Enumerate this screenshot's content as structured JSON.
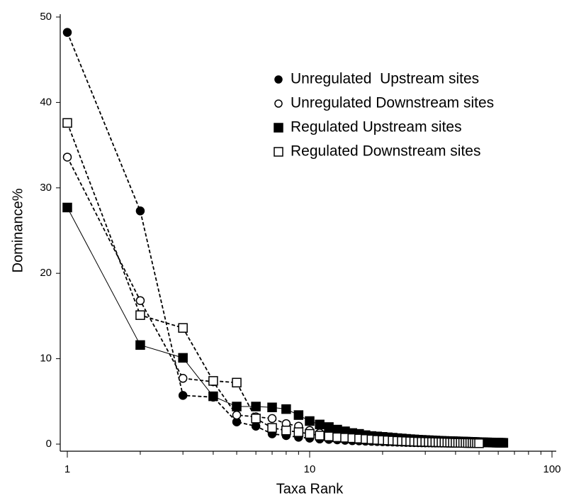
{
  "chart_data": {
    "type": "line",
    "x": [
      1,
      2,
      3,
      4,
      5,
      6,
      7,
      8,
      9,
      10,
      11,
      12,
      13,
      14,
      15,
      16,
      17,
      18,
      19,
      20,
      21,
      22,
      23,
      24,
      25,
      26,
      27,
      28,
      29,
      30,
      31,
      32,
      33,
      34,
      35,
      36,
      37,
      38,
      39,
      40,
      41,
      42,
      43,
      44,
      45,
      46,
      47,
      48,
      49,
      50,
      51,
      52,
      53,
      54,
      55,
      56,
      57,
      58,
      59,
      60,
      61,
      62,
      63
    ],
    "xlabel": "Taxa Rank",
    "ylabel": "Dominance%",
    "xlim": [
      1,
      100
    ],
    "xticks": [
      1,
      10,
      100
    ],
    "xscale": "log",
    "ylim": [
      0,
      50
    ],
    "yticks": [
      0,
      10,
      20,
      30,
      40,
      50
    ],
    "legend": "upper right",
    "series": [
      {
        "name": "Unregulated  Upstream sites",
        "color": "#000000",
        "marker": "circle",
        "filled": true,
        "dashed": true,
        "values": [
          48.2,
          27.3,
          5.7,
          5.5,
          2.6,
          2.1,
          1.2,
          1.0,
          0.8,
          0.7,
          0.6,
          0.55,
          0.5,
          0.45,
          0.4,
          0.38,
          0.35,
          0.33,
          0.3,
          0.28,
          0.26,
          0.25,
          0.23,
          0.22,
          0.2,
          0.19,
          0.18,
          0.17,
          0.16,
          0.15,
          0.15,
          0.14,
          0.13,
          0.13,
          0.12,
          0.12,
          0.11,
          0.11,
          0.1,
          0.1,
          null,
          null,
          null,
          null,
          null,
          null,
          null,
          null,
          null,
          null,
          null,
          null,
          null,
          null,
          null,
          null,
          null,
          null,
          null,
          null,
          null,
          null,
          null
        ]
      },
      {
        "name": "Unregulated Downstream sites",
        "color": "#000000",
        "marker": "circle",
        "filled": false,
        "dashed": true,
        "values": [
          33.6,
          16.8,
          7.7,
          7.3,
          3.4,
          3.2,
          3.0,
          2.4,
          2.1,
          1.6,
          1.3,
          1.1,
          0.95,
          0.85,
          0.75,
          0.7,
          0.65,
          0.6,
          0.55,
          0.5,
          0.47,
          0.44,
          0.41,
          0.38,
          0.36,
          0.34,
          0.32,
          0.3,
          0.28,
          0.27,
          0.25,
          0.24,
          0.23,
          0.22,
          0.21,
          0.2,
          0.19,
          0.18,
          0.17,
          0.16,
          0.15,
          0.14,
          0.13,
          0.12,
          0.11,
          null,
          null,
          null,
          null,
          null,
          null,
          null,
          null,
          null,
          null,
          null,
          null,
          null,
          null,
          null,
          null,
          null,
          null
        ]
      },
      {
        "name": "Regulated Upstream sites",
        "color": "#000000",
        "marker": "square",
        "filled": true,
        "dashed": false,
        "values": [
          27.7,
          11.6,
          10.1,
          5.6,
          4.4,
          4.4,
          4.3,
          4.1,
          3.4,
          2.7,
          2.3,
          2.0,
          1.7,
          1.5,
          1.3,
          1.2,
          1.05,
          0.95,
          0.9,
          0.85,
          0.8,
          0.75,
          0.7,
          0.66,
          0.62,
          0.58,
          0.55,
          0.52,
          0.5,
          0.48,
          0.46,
          0.44,
          0.42,
          0.4,
          0.38,
          0.37,
          0.36,
          0.35,
          0.34,
          0.33,
          0.32,
          0.31,
          0.3,
          0.29,
          0.28,
          0.27,
          0.26,
          0.25,
          0.24,
          0.23,
          0.22,
          0.21,
          0.2,
          0.2,
          0.19,
          0.19,
          0.18,
          0.18,
          0.17,
          0.17,
          0.16,
          0.16,
          0.15
        ]
      },
      {
        "name": "Regulated Downstream sites",
        "color": "#000000",
        "marker": "square",
        "filled": false,
        "dashed": true,
        "values": [
          37.6,
          15.1,
          13.6,
          7.4,
          7.2,
          3.0,
          1.9,
          1.6,
          1.4,
          1.2,
          1.0,
          0.9,
          0.8,
          0.75,
          0.7,
          0.65,
          0.6,
          0.55,
          0.5,
          0.47,
          0.44,
          0.41,
          0.38,
          0.36,
          0.34,
          0.32,
          0.3,
          0.28,
          0.27,
          0.26,
          0.25,
          0.24,
          0.23,
          0.22,
          0.21,
          0.2,
          0.19,
          0.18,
          0.17,
          0.16,
          0.15,
          0.15,
          0.14,
          0.14,
          0.13,
          0.13,
          0.12,
          0.12,
          0.11,
          0.1,
          null,
          null,
          null,
          null,
          null,
          null,
          null,
          null,
          null,
          null,
          null,
          null,
          null
        ]
      }
    ]
  }
}
